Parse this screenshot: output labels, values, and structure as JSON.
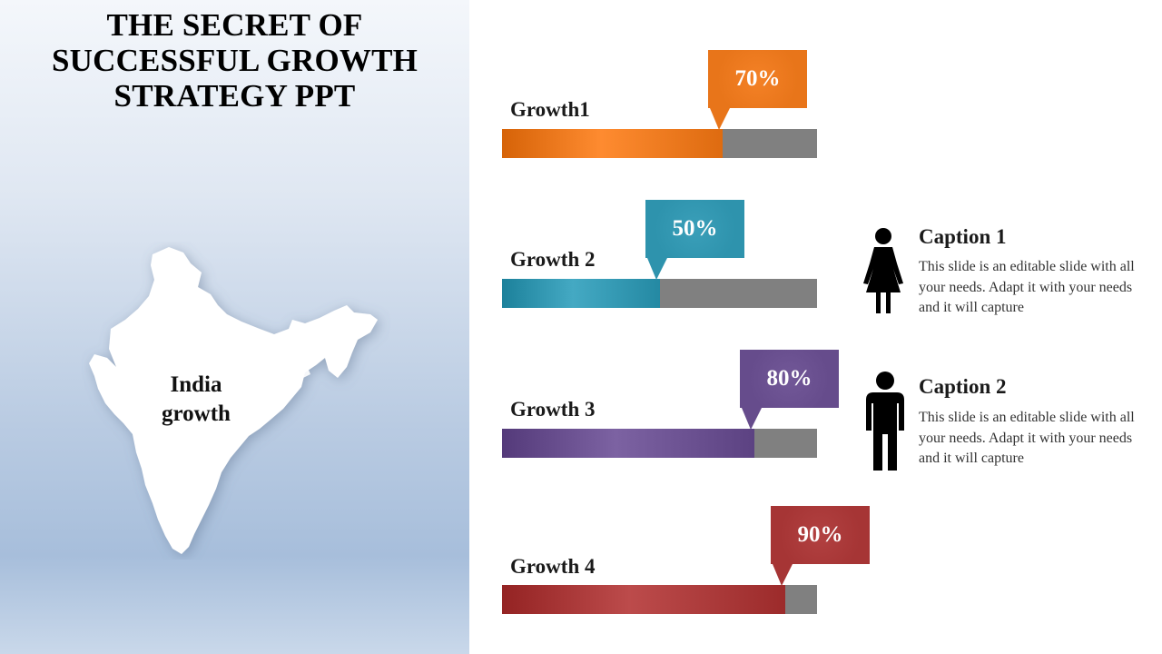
{
  "slide": {
    "title_lines": [
      "THE SECRET OF",
      "SUCCESSFUL GROWTH",
      "STRATEGY PPT"
    ],
    "map_label_lines": [
      "India",
      "growth"
    ],
    "map_icon": "india-map-silhouette"
  },
  "growth_bars": [
    {
      "label": "Growth1",
      "percent_text": "70%",
      "value": 70,
      "color": "#e8751a"
    },
    {
      "label": "Growth 2",
      "percent_text": "50%",
      "value": 50,
      "color": "#2e93ad"
    },
    {
      "label": "Growth 3",
      "percent_text": "80%",
      "value": 80,
      "color": "#664c8c"
    },
    {
      "label": "Growth 4",
      "percent_text": "90%",
      "value": 90,
      "color": "#a63535"
    }
  ],
  "captions": [
    {
      "title": "Caption 1",
      "text": "This slide is an editable slide with all your needs. Adapt it with your needs and it will capture",
      "icon": "woman-icon"
    },
    {
      "title": "Caption 2",
      "text": "This slide is an editable slide with all your needs. Adapt it with your needs and it will capture",
      "icon": "man-icon"
    }
  ]
}
